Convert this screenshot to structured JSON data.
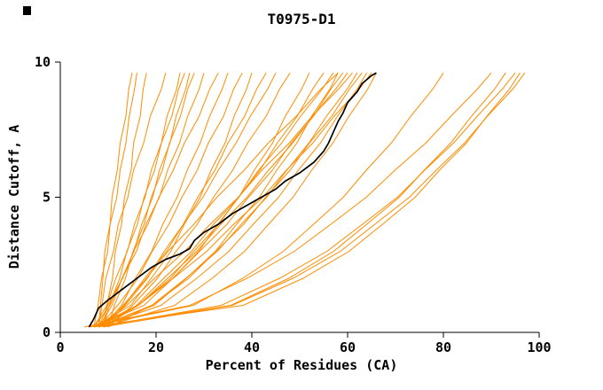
{
  "page": {
    "background": "#ffffff"
  },
  "chart_data": {
    "type": "line",
    "title": "T0975-D1",
    "xlabel": "Percent of Residues (CA)",
    "ylabel": "Distance Cutoff, A",
    "xlim": [
      0,
      100
    ],
    "ylim": [
      0,
      10
    ],
    "x_ticks": [
      0,
      20,
      40,
      60,
      80,
      100
    ],
    "y_ticks": [
      0,
      5,
      10
    ],
    "grid": false,
    "legend": "none",
    "axis_color": "#000000",
    "series_color": "#ff8c00",
    "highlight_color": "#000000",
    "y_levels": [
      0.2,
      1,
      2,
      3,
      4,
      5,
      6,
      7,
      8,
      9,
      9.6
    ],
    "orange_series_x": [
      [
        8,
        8.4,
        8.9,
        9.3,
        10.4,
        10.8,
        11.9,
        12.5,
        13.7,
        14.3,
        15
      ],
      [
        7,
        7.9,
        8.6,
        9.9,
        10.4,
        11.8,
        12.5,
        13.7,
        14.4,
        15.5,
        16
      ],
      [
        9,
        9.7,
        10.9,
        11.5,
        12.8,
        13.4,
        14.8,
        15.3,
        16.7,
        17.3,
        18
      ],
      [
        8,
        8.7,
        9.5,
        11.1,
        12.1,
        14.1,
        15.3,
        17.4,
        18.8,
        21.1,
        22
      ],
      [
        7,
        9.7,
        11.6,
        14.0,
        15.5,
        17.7,
        19.0,
        21.1,
        22.3,
        24.3,
        25
      ],
      [
        9,
        10.2,
        12.4,
        13.9,
        16.1,
        17.5,
        19.7,
        21.1,
        23.3,
        24.7,
        26
      ],
      [
        8,
        10.8,
        12.9,
        15.4,
        17.0,
        19.3,
        20.7,
        22.9,
        24.2,
        26.2,
        27
      ],
      [
        10,
        11.3,
        13.6,
        15.2,
        17.5,
        19.0,
        21.3,
        22.8,
        25.1,
        26.6,
        28
      ],
      [
        7,
        10.4,
        12.9,
        15.9,
        17.9,
        20.7,
        22.4,
        24.9,
        26.6,
        29.0,
        30
      ],
      [
        8,
        9.9,
        13.0,
        15.3,
        18.3,
        20.6,
        23.6,
        25.9,
        29.0,
        31.2,
        33
      ],
      [
        9,
        12.8,
        15.7,
        19.1,
        21.4,
        24.4,
        26.5,
        29.2,
        31.2,
        33.8,
        35
      ],
      [
        8,
        12.0,
        16.2,
        19.2,
        22.7,
        25.4,
        28.6,
        30.9,
        34.1,
        36.2,
        38
      ],
      [
        7,
        14.7,
        19.0,
        23.1,
        25.9,
        29.2,
        31.5,
        34.4,
        36.3,
        38.9,
        40
      ],
      [
        9,
        13.5,
        18.2,
        21.7,
        25.7,
        28.7,
        32.3,
        35.0,
        38.5,
        41.0,
        43
      ],
      [
        8,
        13.3,
        17.6,
        22.2,
        25.7,
        29.8,
        33.0,
        36.7,
        39.7,
        43.3,
        45
      ],
      [
        10,
        15.1,
        20.3,
        24.2,
        28.6,
        32.0,
        36.0,
        39.1,
        43.0,
        45.8,
        48
      ],
      [
        7,
        17.5,
        23.5,
        28.9,
        32.9,
        37.3,
        40.5,
        44.3,
        47.0,
        50.4,
        52
      ],
      [
        8,
        16.2,
        23.0,
        27.9,
        33.1,
        37.2,
        41.7,
        45.3,
        49.5,
        52.7,
        55
      ],
      [
        9,
        15.9,
        21.6,
        27.4,
        32.0,
        37.3,
        41.4,
        46.2,
        50.2,
        54.7,
        57
      ],
      [
        8,
        19.6,
        26.3,
        32.4,
        36.8,
        41.6,
        45.2,
        49.4,
        52.5,
        56.3,
        58
      ],
      [
        7,
        16.1,
        23.5,
        29.1,
        34.8,
        39.3,
        44.3,
        48.2,
        52.9,
        56.5,
        59
      ],
      [
        9,
        16.3,
        22.4,
        28.5,
        33.5,
        39.0,
        43.5,
        48.5,
        52.8,
        57.5,
        60
      ],
      [
        8,
        19.1,
        26.2,
        32.8,
        37.8,
        43.1,
        47.3,
        51.9,
        55.6,
        59.9,
        62
      ],
      [
        10,
        19.2,
        26.8,
        32.5,
        38.3,
        42.9,
        48.0,
        52.0,
        56.7,
        60.4,
        63
      ],
      [
        8,
        21.0,
        28.5,
        35.2,
        40.3,
        45.6,
        49.7,
        54.3,
        57.9,
        62.0,
        64
      ],
      [
        7,
        16.3,
        23.6,
        30.6,
        36.2,
        42.3,
        47.2,
        52.7,
        57.2,
        62.4,
        65
      ],
      [
        9,
        23.9,
        31.7,
        38.5,
        43.5,
        48.6,
        52.5,
        56.9,
        60.3,
        64.2,
        66
      ],
      [
        6,
        27.8,
        38.1,
        46.6,
        52.9,
        59.1,
        63.9,
        69.1,
        73.2,
        77.8,
        80
      ],
      [
        7,
        35.6,
        47.7,
        57.1,
        64.0,
        70.8,
        76.0,
        81.5,
        85.9,
        90.7,
        93
      ],
      [
        8,
        33.6,
        45.8,
        55.7,
        63.1,
        70.4,
        76.1,
        82.1,
        87.1,
        92.3,
        95
      ],
      [
        6,
        38.2,
        50.7,
        60.3,
        67.3,
        74.1,
        79.2,
        84.8,
        89.1,
        93.8,
        96
      ],
      [
        9,
        35.9,
        48.6,
        58.5,
        65.7,
        72.9,
        78.5,
        84.4,
        89.2,
        94.5,
        97
      ],
      [
        5,
        27.1,
        39.0,
        48.9,
        56.5,
        63.9,
        69.9,
        76.3,
        81.6,
        87.1,
        90
      ],
      [
        8,
        13.9,
        19.7,
        26.0,
        31.3,
        37.2,
        42.1,
        47.8,
        52.6,
        58.1,
        61
      ],
      [
        10,
        13.1,
        18.0,
        22.5,
        27.9,
        32.7,
        38.4,
        43.4,
        49.3,
        54.4,
        58
      ]
    ],
    "highlight_series": [
      [
        6,
        0.2
      ],
      [
        7,
        0.5
      ],
      [
        8,
        0.9
      ],
      [
        10,
        1.2
      ],
      [
        13,
        1.6
      ],
      [
        16,
        2.0
      ],
      [
        19,
        2.4
      ],
      [
        22,
        2.7
      ],
      [
        25,
        2.9
      ],
      [
        27,
        3.1
      ],
      [
        28,
        3.4
      ],
      [
        30,
        3.7
      ],
      [
        33,
        4.0
      ],
      [
        36,
        4.4
      ],
      [
        39,
        4.7
      ],
      [
        42,
        5.0
      ],
      [
        45,
        5.3
      ],
      [
        47,
        5.6
      ],
      [
        50,
        5.9
      ],
      [
        53,
        6.3
      ],
      [
        55,
        6.7
      ],
      [
        56,
        7.0
      ],
      [
        57,
        7.4
      ],
      [
        58,
        7.8
      ],
      [
        59,
        8.1
      ],
      [
        60,
        8.5
      ],
      [
        62,
        8.9
      ],
      [
        63,
        9.2
      ],
      [
        65,
        9.5
      ],
      [
        66,
        9.6
      ]
    ]
  }
}
